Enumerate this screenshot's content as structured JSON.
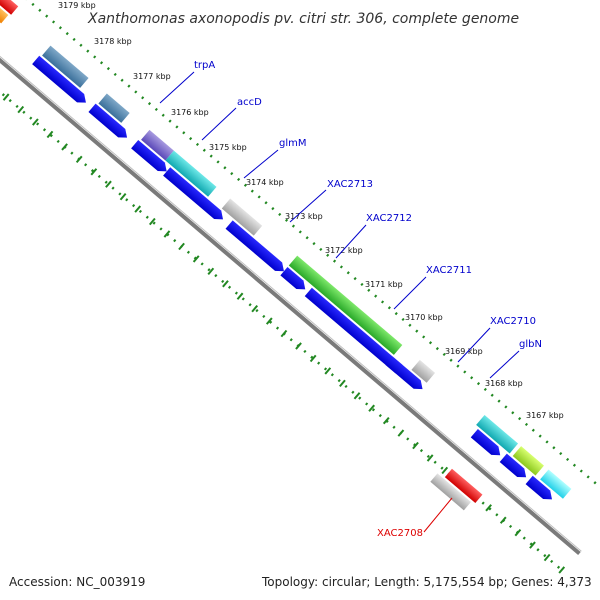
{
  "title": "Xanthomonas axonopodis pv. citri str. 306, complete genome",
  "footer": {
    "accession": "Accession: NC_003919",
    "topology": "Topology: circular; Length: 5,175,554 bp; Genes: 4,373"
  },
  "scale_labels": [
    "3179 kbp",
    "3178 kbp",
    "3177 kbp",
    "3176 kbp",
    "3175 kbp",
    "3174 kbp",
    "3173 kbp",
    "3172 kbp",
    "3171 kbp",
    "3170 kbp",
    "3169 kbp",
    "3168 kbp",
    "3167 kbp"
  ],
  "gene_labels": [
    {
      "name": "trpA",
      "color": "#0000cc"
    },
    {
      "name": "accD",
      "color": "#0000cc"
    },
    {
      "name": "glmM",
      "color": "#0000cc"
    },
    {
      "name": "XAC2713",
      "color": "#0000cc"
    },
    {
      "name": "XAC2712",
      "color": "#0000cc"
    },
    {
      "name": "XAC2711",
      "color": "#0000cc"
    },
    {
      "name": "XAC2710",
      "color": "#0000cc"
    },
    {
      "name": "glbN",
      "color": "#0000cc"
    },
    {
      "name": "XAC2708",
      "color": "#dd0000"
    }
  ],
  "colors": {
    "backbone": "#888888",
    "cds_arrow": "#0000ee",
    "ticks": "#228822",
    "label_blue": "#0000cc",
    "label_red": "#dd0000"
  }
}
